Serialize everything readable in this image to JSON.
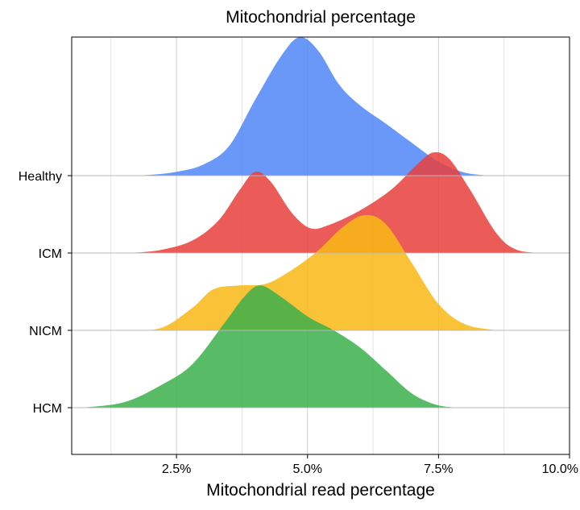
{
  "chart_data": {
    "type": "ridgeline",
    "title": "Mitochondrial percentage",
    "xlabel": "Mitochondrial read percentage",
    "ylabel": "",
    "xlim": [
      0.5,
      10.0
    ],
    "x_ticks": [
      {
        "value": 2.5,
        "label": "2.5%"
      },
      {
        "value": 5.0,
        "label": "5.0%"
      },
      {
        "value": 7.5,
        "label": "7.5%"
      },
      {
        "value": 10.0,
        "label": "10.0%"
      }
    ],
    "x_minor_grid": [
      1.25,
      3.75,
      6.25,
      8.75
    ],
    "grid": true,
    "categories": [
      "Healthy",
      "ICM",
      "NICM",
      "HCM"
    ],
    "density_unit": "relative to the spacing between baselines",
    "series": [
      {
        "category": "Healthy",
        "color": "#4F86F7",
        "points": [
          [
            1.5,
            0.0
          ],
          [
            2.0,
            0.01
          ],
          [
            2.5,
            0.05
          ],
          [
            3.0,
            0.14
          ],
          [
            3.5,
            0.38
          ],
          [
            4.0,
            0.98
          ],
          [
            4.5,
            1.55
          ],
          [
            4.85,
            1.79
          ],
          [
            5.2,
            1.62
          ],
          [
            5.6,
            1.18
          ],
          [
            6.0,
            0.91
          ],
          [
            6.5,
            0.67
          ],
          [
            7.0,
            0.42
          ],
          [
            7.5,
            0.18
          ],
          [
            8.0,
            0.04
          ],
          [
            8.5,
            0.0
          ]
        ]
      },
      {
        "category": "ICM",
        "color": "#E8403C",
        "points": [
          [
            1.6,
            0.0
          ],
          [
            2.2,
            0.04
          ],
          [
            2.8,
            0.16
          ],
          [
            3.3,
            0.42
          ],
          [
            3.7,
            0.81
          ],
          [
            4.0,
            1.05
          ],
          [
            4.3,
            0.92
          ],
          [
            4.7,
            0.52
          ],
          [
            5.05,
            0.32
          ],
          [
            5.4,
            0.36
          ],
          [
            6.0,
            0.55
          ],
          [
            6.6,
            0.82
          ],
          [
            7.1,
            1.15
          ],
          [
            7.4,
            1.3
          ],
          [
            7.7,
            1.22
          ],
          [
            8.1,
            0.82
          ],
          [
            8.6,
            0.26
          ],
          [
            9.0,
            0.04
          ],
          [
            9.6,
            0.0
          ]
        ]
      },
      {
        "category": "NICM",
        "color": "#F9B914",
        "points": [
          [
            1.5,
            0.0
          ],
          [
            2.2,
            0.03
          ],
          [
            2.8,
            0.29
          ],
          [
            3.2,
            0.53
          ],
          [
            3.7,
            0.58
          ],
          [
            4.2,
            0.6
          ],
          [
            4.7,
            0.78
          ],
          [
            5.2,
            1.03
          ],
          [
            5.7,
            1.35
          ],
          [
            6.1,
            1.49
          ],
          [
            6.5,
            1.37
          ],
          [
            7.0,
            0.86
          ],
          [
            7.5,
            0.34
          ],
          [
            8.0,
            0.08
          ],
          [
            8.6,
            0.0
          ]
        ]
      },
      {
        "category": "HCM",
        "color": "#3BAF4A",
        "points": [
          [
            0.7,
            0.0
          ],
          [
            1.5,
            0.07
          ],
          [
            2.2,
            0.29
          ],
          [
            2.8,
            0.56
          ],
          [
            3.4,
            1.08
          ],
          [
            3.8,
            1.44
          ],
          [
            4.1,
            1.58
          ],
          [
            4.5,
            1.43
          ],
          [
            5.0,
            1.18
          ],
          [
            5.5,
            1.0
          ],
          [
            6.0,
            0.78
          ],
          [
            6.5,
            0.48
          ],
          [
            7.0,
            0.18
          ],
          [
            7.5,
            0.03
          ],
          [
            8.0,
            0.0
          ]
        ]
      }
    ]
  }
}
